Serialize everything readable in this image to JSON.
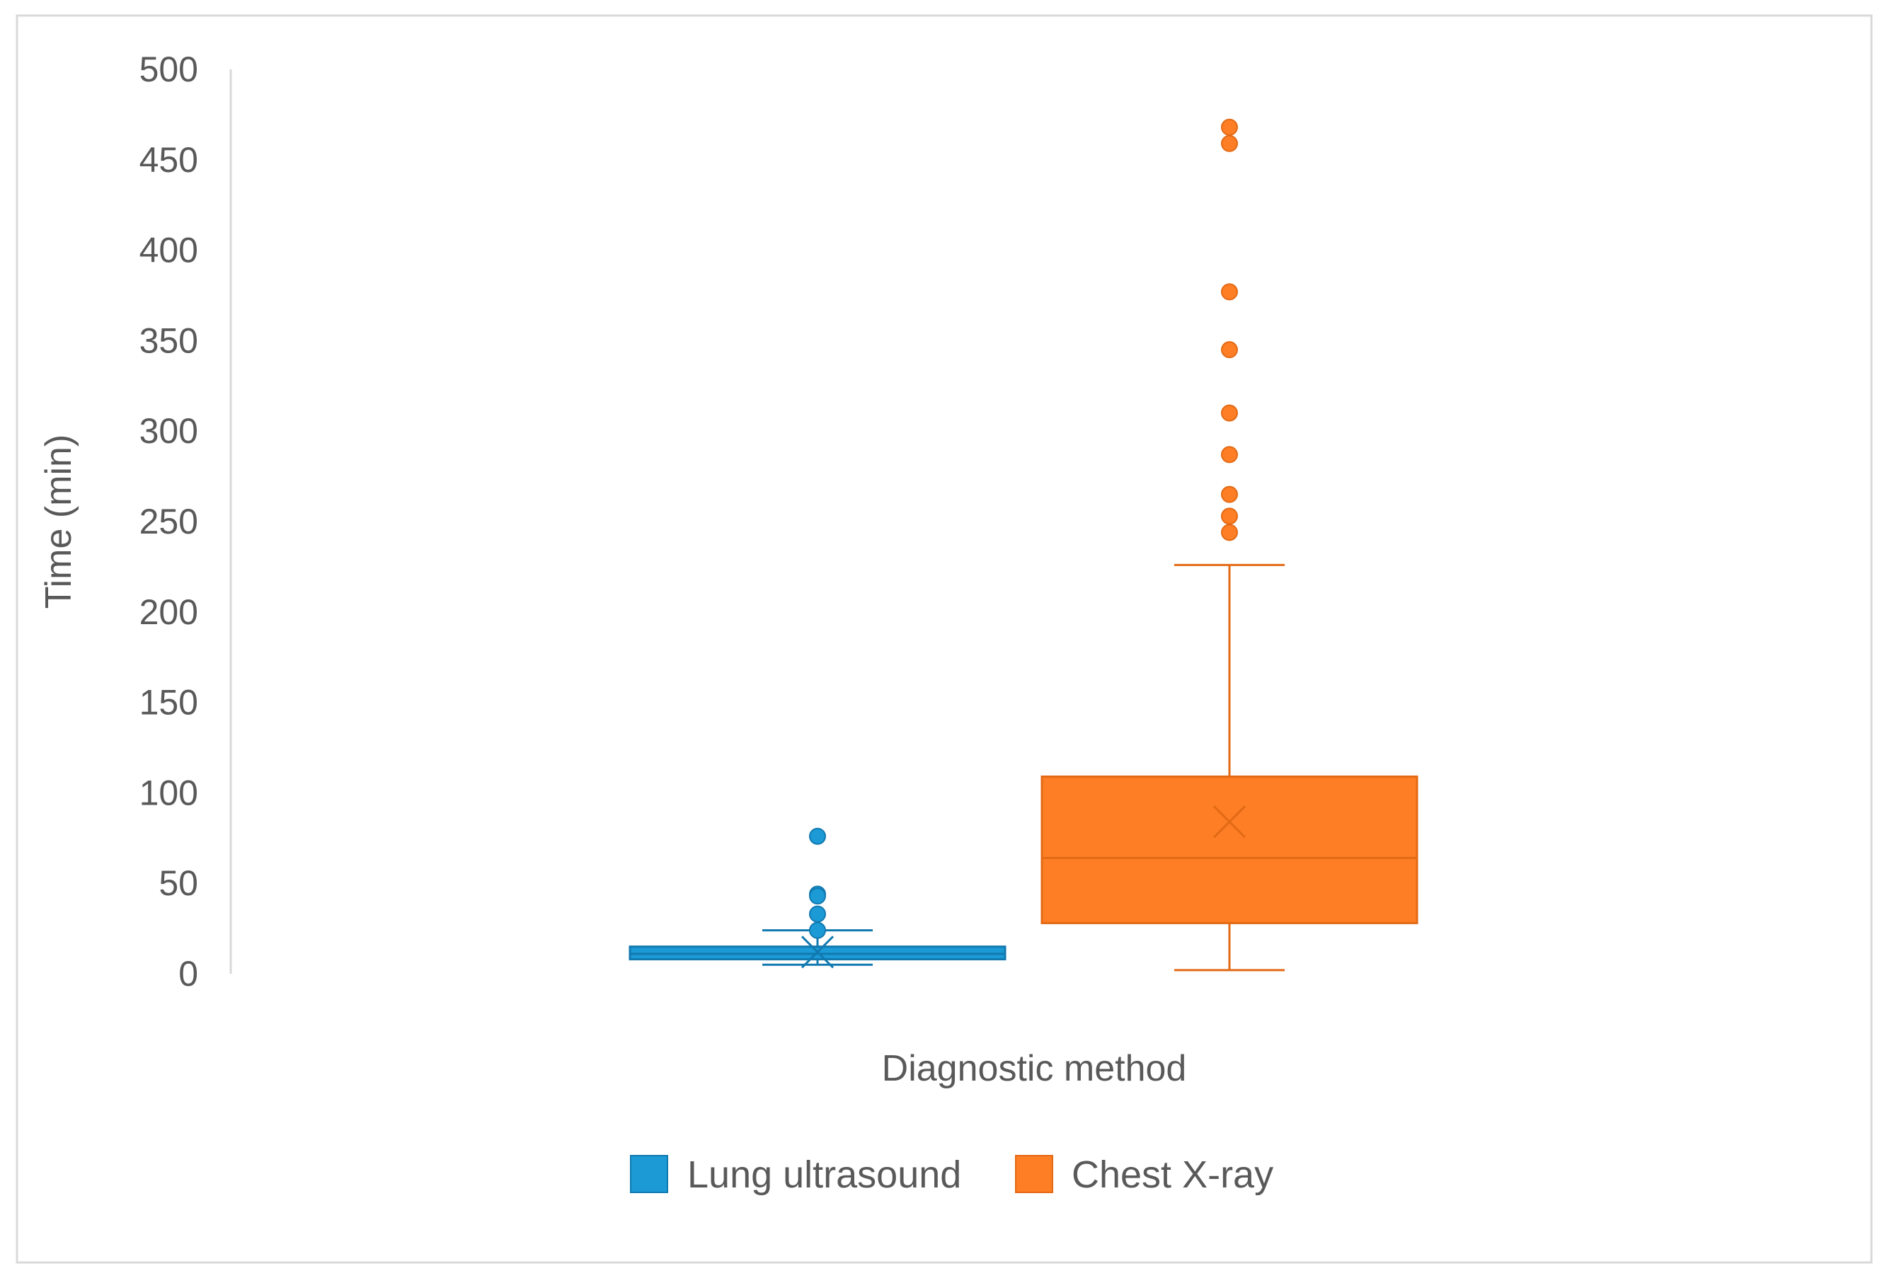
{
  "chart_data": {
    "type": "box",
    "xlabel": "Diagnostic method",
    "ylabel": "Time (min)",
    "ylim": [
      0,
      500
    ],
    "yticks": [
      0,
      50,
      100,
      150,
      200,
      250,
      300,
      350,
      400,
      450,
      500
    ],
    "grid": false,
    "legend_position": "bottom",
    "series": [
      {
        "name": "Lung ultrasound",
        "color": "#1B9AD6",
        "stroke": "#1279B0",
        "whisker_low": 5,
        "q1": 8,
        "median": 11,
        "q3": 15,
        "whisker_high": 24,
        "mean": 12,
        "outliers": [
          76,
          44,
          43,
          33,
          24
        ]
      },
      {
        "name": "Chest X-ray",
        "color": "#FD7E24",
        "stroke": "#E36A15",
        "whisker_low": 2,
        "q1": 28,
        "median": 64,
        "q3": 109,
        "whisker_high": 226,
        "mean": 84,
        "outliers": [
          468,
          459,
          377,
          345,
          310,
          287,
          265,
          253,
          244
        ]
      }
    ]
  }
}
